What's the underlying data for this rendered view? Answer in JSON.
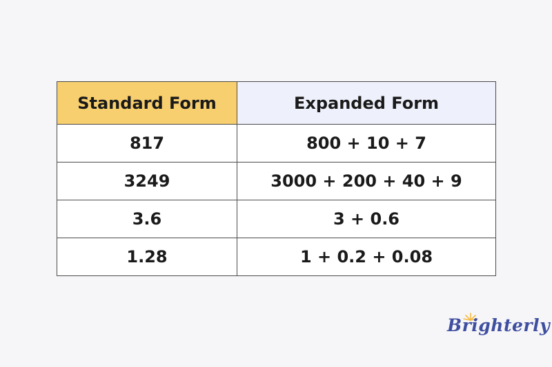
{
  "table": {
    "headers": [
      "Standard Form",
      "Expanded Form"
    ],
    "rows": [
      [
        "817",
        "800 + 10 + 7"
      ],
      [
        "3249",
        "3000 + 200 + 40 + 9"
      ],
      [
        "3.6",
        "3 + 0.6"
      ],
      [
        "1.28",
        "1 + 0.2 + 0.08"
      ]
    ]
  },
  "logo": {
    "text": "Brighterly"
  },
  "colors": {
    "header_left": "#f8cf6e",
    "header_right": "#eef0fb",
    "logo": "#3f4fa0",
    "sun": "#f5b942"
  }
}
